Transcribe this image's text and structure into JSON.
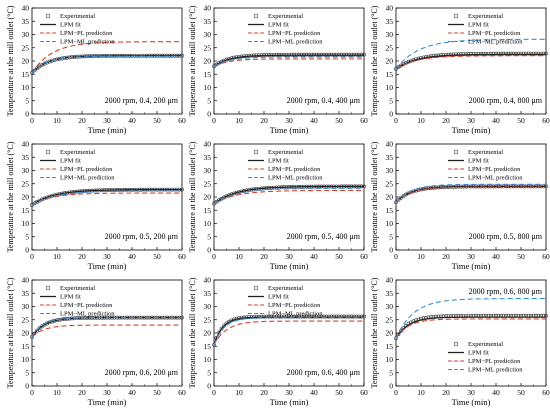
{
  "colors": {
    "experimental": "#333333",
    "lpm_fit": "#222222",
    "lpm_pl": "#d9402b",
    "lpm_ml": "#3a8fd8"
  },
  "legend": {
    "experimental": "Experimental",
    "lpm_fit": "LPM fit",
    "lpm_pl": "LPM−PL prediction",
    "lpm_ml": "LPM−ML prediction"
  },
  "xlabel": "Time (min)",
  "ylabel": "Temperature at the mill outlet (°C)",
  "chart_data": [
    {
      "type": "line",
      "panel": 1,
      "condition": "2000 rpm, 0.4, 200 μm",
      "legend_position": "top-left",
      "condition_position": "bottom-right",
      "xlim": [
        0,
        60
      ],
      "ylim": [
        0,
        40
      ],
      "x_ticks": [
        0,
        10,
        20,
        30,
        40,
        50,
        60
      ],
      "y_ticks": [
        0,
        5,
        10,
        15,
        20,
        25,
        30,
        35,
        40
      ],
      "series": [
        {
          "name": "Experimental",
          "kind": "points",
          "T0": 15.5,
          "Tinf": 22.0,
          "tau": 6.5,
          "sample_step": 1
        },
        {
          "name": "LPM fit",
          "kind": "line",
          "T0": 15.5,
          "Tinf": 22.0,
          "tau": 6.5
        },
        {
          "name": "LPM−PL prediction",
          "kind": "line",
          "T0": 15.5,
          "Tinf": 27.3,
          "tau": 8
        },
        {
          "name": "LPM−ML prediction",
          "kind": "line",
          "T0": 15.5,
          "Tinf": 21.8,
          "tau": 6
        }
      ]
    },
    {
      "type": "line",
      "panel": 2,
      "condition": "2000 rpm, 0.4, 400 μm",
      "legend_position": "top-center",
      "condition_position": "bottom-right",
      "xlim": [
        0,
        60
      ],
      "ylim": [
        0,
        40
      ],
      "x_ticks": [
        0,
        10,
        20,
        30,
        40,
        50,
        60
      ],
      "y_ticks": [
        0,
        5,
        10,
        15,
        20,
        25,
        30,
        35,
        40
      ],
      "series": [
        {
          "name": "Experimental",
          "kind": "points",
          "T0": 18,
          "Tinf": 22.4,
          "tau": 6,
          "sample_step": 1
        },
        {
          "name": "LPM fit",
          "kind": "line",
          "T0": 18,
          "Tinf": 22.2,
          "tau": 6
        },
        {
          "name": "LPM−PL prediction",
          "kind": "line",
          "T0": 18,
          "Tinf": 20.8,
          "tau": 6
        },
        {
          "name": "LPM−ML prediction",
          "kind": "line",
          "T0": 18,
          "Tinf": 21.5,
          "tau": 6
        }
      ]
    },
    {
      "type": "line",
      "panel": 3,
      "condition": "2000 rpm, 0.4, 800 μm",
      "legend_position": "top-right",
      "condition_position": "bottom-right",
      "xlim": [
        0,
        60
      ],
      "ylim": [
        0,
        40
      ],
      "x_ticks": [
        0,
        10,
        20,
        30,
        40,
        50,
        60
      ],
      "y_ticks": [
        0,
        5,
        10,
        15,
        20,
        25,
        30,
        35,
        40
      ],
      "series": [
        {
          "name": "Experimental",
          "kind": "points",
          "T0": 17,
          "Tinf": 22.8,
          "tau": 8,
          "sample_step": 1
        },
        {
          "name": "LPM fit",
          "kind": "line",
          "T0": 17,
          "Tinf": 22.5,
          "tau": 8
        },
        {
          "name": "LPM−PL prediction",
          "kind": "line",
          "T0": 17,
          "Tinf": 22.0,
          "tau": 8
        },
        {
          "name": "LPM−ML prediction",
          "kind": "line",
          "T0": 17,
          "Tinf": 28.2,
          "tau": 9
        }
      ]
    },
    {
      "type": "line",
      "panel": 4,
      "condition": "2000 rpm, 0.5, 200 μm",
      "legend_position": "top-left",
      "condition_position": "bottom-right",
      "xlim": [
        0,
        60
      ],
      "ylim": [
        0,
        40
      ],
      "x_ticks": [
        0,
        10,
        20,
        30,
        40,
        50,
        60
      ],
      "y_ticks": [
        0,
        5,
        10,
        15,
        20,
        25,
        30,
        35,
        40
      ],
      "series": [
        {
          "name": "Experimental",
          "kind": "points",
          "T0": 17,
          "Tinf": 22.8,
          "tau": 9,
          "sample_step": 1
        },
        {
          "name": "LPM fit",
          "kind": "line",
          "T0": 17,
          "Tinf": 22.8,
          "tau": 9
        },
        {
          "name": "LPM−PL prediction",
          "kind": "line",
          "T0": 17,
          "Tinf": 21.5,
          "tau": 8
        },
        {
          "name": "LPM−ML prediction",
          "kind": "line",
          "T0": 17,
          "Tinf": 22.3,
          "tau": 9
        }
      ]
    },
    {
      "type": "line",
      "panel": 5,
      "condition": "2000 rpm, 0.5, 400 μm",
      "legend_position": "top-center",
      "condition_position": "bottom-right",
      "xlim": [
        0,
        60
      ],
      "ylim": [
        0,
        40
      ],
      "x_ticks": [
        0,
        10,
        20,
        30,
        40,
        50,
        60
      ],
      "y_ticks": [
        0,
        5,
        10,
        15,
        20,
        25,
        30,
        35,
        40
      ],
      "series": [
        {
          "name": "Experimental",
          "kind": "points",
          "T0": 17.5,
          "Tinf": 24.0,
          "tau": 9,
          "sample_step": 1
        },
        {
          "name": "LPM fit",
          "kind": "line",
          "T0": 17.5,
          "Tinf": 24.0,
          "tau": 9
        },
        {
          "name": "LPM−PL prediction",
          "kind": "line",
          "T0": 17.5,
          "Tinf": 22.5,
          "tau": 9
        },
        {
          "name": "LPM−ML prediction",
          "kind": "line",
          "T0": 17.5,
          "Tinf": 23.3,
          "tau": 9
        }
      ]
    },
    {
      "type": "line",
      "panel": 6,
      "condition": "2000 rpm, 0.5, 800 μm",
      "legend_position": "top-right",
      "condition_position": "bottom-right",
      "xlim": [
        0,
        60
      ],
      "ylim": [
        0,
        40
      ],
      "x_ticks": [
        0,
        10,
        20,
        30,
        40,
        50,
        60
      ],
      "y_ticks": [
        0,
        5,
        10,
        15,
        20,
        25,
        30,
        35,
        40
      ],
      "series": [
        {
          "name": "Experimental",
          "kind": "points",
          "T0": 18,
          "Tinf": 24.0,
          "tau": 6,
          "sample_step": 1
        },
        {
          "name": "LPM fit",
          "kind": "line",
          "T0": 18,
          "Tinf": 24.0,
          "tau": 6
        },
        {
          "name": "LPM−PL prediction",
          "kind": "line",
          "T0": 18,
          "Tinf": 23.8,
          "tau": 6
        },
        {
          "name": "LPM−ML prediction",
          "kind": "line",
          "T0": 18,
          "Tinf": 24.8,
          "tau": 6
        }
      ]
    },
    {
      "type": "line",
      "panel": 7,
      "condition": "2000 rpm, 0.6, 200 μm",
      "legend_position": "top-left",
      "condition_position": "bottom-right",
      "xlim": [
        0,
        60
      ],
      "ylim": [
        0,
        40
      ],
      "x_ticks": [
        0,
        10,
        20,
        30,
        40,
        50,
        60
      ],
      "y_ticks": [
        0,
        5,
        10,
        15,
        20,
        25,
        30,
        35,
        40
      ],
      "series": [
        {
          "name": "Experimental",
          "kind": "points",
          "T0": 18.5,
          "Tinf": 25.8,
          "tau": 5,
          "sample_step": 1
        },
        {
          "name": "LPM fit",
          "kind": "line",
          "T0": 18.5,
          "Tinf": 25.8,
          "tau": 5
        },
        {
          "name": "LPM−PL prediction",
          "kind": "line",
          "T0": 18.5,
          "Tinf": 23.0,
          "tau": 5
        },
        {
          "name": "LPM−ML prediction",
          "kind": "line",
          "T0": 18.5,
          "Tinf": 25.8,
          "tau": 4.5
        }
      ]
    },
    {
      "type": "line",
      "panel": 8,
      "condition": "2000 rpm, 0.6, 400 μm",
      "legend_position": "top-center",
      "condition_position": "bottom-right",
      "xlim": [
        0,
        60
      ],
      "ylim": [
        0,
        40
      ],
      "x_ticks": [
        0,
        10,
        20,
        30,
        40,
        50,
        60
      ],
      "y_ticks": [
        0,
        5,
        10,
        15,
        20,
        25,
        30,
        35,
        40
      ],
      "series": [
        {
          "name": "Experimental",
          "kind": "points",
          "T0": 15.5,
          "Tinf": 26.2,
          "tau": 3.5,
          "sample_step": 1
        },
        {
          "name": "LPM fit",
          "kind": "line",
          "T0": 15.5,
          "Tinf": 26.0,
          "tau": 3.5
        },
        {
          "name": "LPM−PL prediction",
          "kind": "line",
          "T0": 15.5,
          "Tinf": 24.5,
          "tau": 5
        },
        {
          "name": "LPM−ML prediction",
          "kind": "line",
          "T0": 15.5,
          "Tinf": 25.8,
          "tau": 4
        }
      ]
    },
    {
      "type": "line",
      "panel": 9,
      "condition": "2000 rpm, 0.6, 800 μm",
      "legend_position": "bottom-right",
      "condition_position": "top-right",
      "xlim": [
        0,
        60
      ],
      "ylim": [
        0,
        40
      ],
      "x_ticks": [
        0,
        10,
        20,
        30,
        40,
        50,
        60
      ],
      "y_ticks": [
        0,
        5,
        10,
        15,
        20,
        25,
        30,
        35,
        40
      ],
      "series": [
        {
          "name": "Experimental",
          "kind": "points",
          "T0": 18,
          "Tinf": 26.5,
          "tau": 5,
          "sample_step": 1
        },
        {
          "name": "LPM fit",
          "kind": "line",
          "T0": 18,
          "Tinf": 26.0,
          "tau": 5
        },
        {
          "name": "LPM−PL prediction",
          "kind": "line",
          "T0": 18,
          "Tinf": 25.3,
          "tau": 5
        },
        {
          "name": "LPM−ML prediction",
          "kind": "line",
          "T0": 18,
          "Tinf": 33.0,
          "tau": 7
        }
      ]
    }
  ]
}
